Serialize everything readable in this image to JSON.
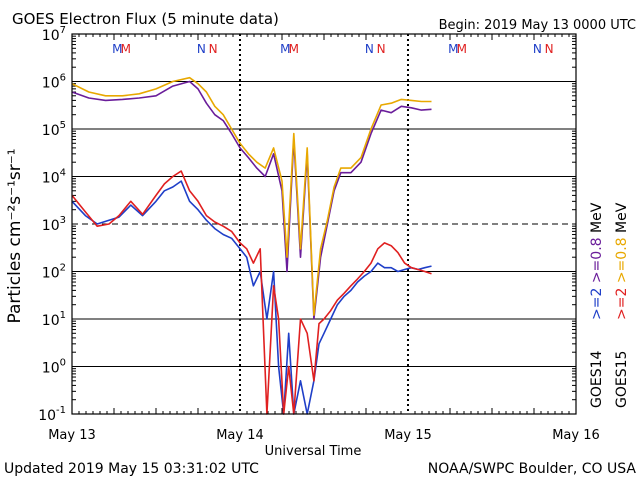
{
  "chart_data": {
    "type": "line",
    "title": "GOES Electron Flux (5 minute data)",
    "begin_label": "Begin: 2019 May 13 0000 UTC",
    "xlabel": "Universal Time",
    "ylabel": "Particles cm⁻²s⁻¹sr⁻¹",
    "x_unit": "days since 2019 May 13 0000 UTC",
    "xlim": [
      0,
      3
    ],
    "x_ticks": [
      {
        "x": 0,
        "label": "May 13"
      },
      {
        "x": 1,
        "label": "May 14"
      },
      {
        "x": 2,
        "label": "May 15"
      },
      {
        "x": 3,
        "label": "May 16"
      }
    ],
    "y_scale": "log",
    "ylim": [
      0.1,
      10000000
    ],
    "y_ticks": [
      {
        "base": "10",
        "exp": "7"
      },
      {
        "base": "10",
        "exp": "6"
      },
      {
        "base": "10",
        "exp": "5"
      },
      {
        "base": "10",
        "exp": "4"
      },
      {
        "base": "10",
        "exp": "3"
      },
      {
        "base": "10",
        "exp": "2"
      },
      {
        "base": "10",
        "exp": "1"
      },
      {
        "base": "10",
        "exp": "0"
      },
      {
        "base": "10",
        "exp": "-1"
      }
    ],
    "dashed_threshold": 1000,
    "markers": [
      {
        "x": 0.27,
        "text": "M",
        "color": "#1f3fc8"
      },
      {
        "x": 0.32,
        "text": "M",
        "color": "#e02020"
      },
      {
        "x": 0.77,
        "text": "N",
        "color": "#1f3fc8"
      },
      {
        "x": 0.84,
        "text": "N",
        "color": "#e02020"
      },
      {
        "x": 1.27,
        "text": "M",
        "color": "#1f3fc8"
      },
      {
        "x": 1.32,
        "text": "M",
        "color": "#e02020"
      },
      {
        "x": 1.77,
        "text": "N",
        "color": "#1f3fc8"
      },
      {
        "x": 1.84,
        "text": "N",
        "color": "#e02020"
      },
      {
        "x": 2.27,
        "text": "M",
        "color": "#1f3fc8"
      },
      {
        "x": 2.32,
        "text": "M",
        "color": "#e02020"
      },
      {
        "x": 2.77,
        "text": "N",
        "color": "#1f3fc8"
      },
      {
        "x": 2.84,
        "text": "N",
        "color": "#e02020"
      }
    ],
    "legend": [
      {
        "sat": "GOES14",
        "parts": [
          {
            "text": ">=2",
            "color": "#1f3fc8"
          },
          {
            "text": ">=0.8",
            "color": "#6a1d9a"
          }
        ],
        "unit": "MeV"
      },
      {
        "sat": "GOES15",
        "parts": [
          {
            "text": ">=2",
            "color": "#e02020"
          },
          {
            "text": ">=0.8",
            "color": "#e8a800"
          }
        ],
        "unit": "MeV"
      }
    ],
    "series": [
      {
        "name": "GOES14 >=0.8 MeV",
        "color": "#6a1d9a",
        "x": [
          0.0,
          0.1,
          0.2,
          0.3,
          0.4,
          0.5,
          0.6,
          0.7,
          0.75,
          0.8,
          0.85,
          0.9,
          0.95,
          1.0,
          1.05,
          1.1,
          1.15,
          1.2,
          1.25,
          1.28,
          1.32,
          1.36,
          1.4,
          1.44,
          1.48,
          1.52,
          1.56,
          1.6,
          1.66,
          1.72,
          1.78,
          1.84,
          1.9,
          1.96,
          2.02,
          2.08,
          2.14
        ],
        "y": [
          600000,
          450000,
          400000,
          420000,
          450000,
          500000,
          800000,
          1000000,
          700000,
          350000,
          200000,
          150000,
          80000,
          40000,
          25000,
          15000,
          10000,
          30000,
          5000,
          100,
          60000,
          200,
          30000,
          10,
          200,
          1000,
          5000,
          12000,
          12000,
          20000,
          80000,
          250000,
          220000,
          300000,
          280000,
          250000,
          260000
        ]
      },
      {
        "name": "GOES15 >=0.8 MeV",
        "color": "#e8a800",
        "x": [
          0.0,
          0.1,
          0.2,
          0.3,
          0.4,
          0.5,
          0.6,
          0.7,
          0.75,
          0.8,
          0.85,
          0.9,
          0.95,
          1.0,
          1.05,
          1.1,
          1.15,
          1.2,
          1.25,
          1.28,
          1.32,
          1.36,
          1.4,
          1.44,
          1.48,
          1.52,
          1.56,
          1.6,
          1.66,
          1.72,
          1.78,
          1.84,
          1.9,
          1.96,
          2.02,
          2.08,
          2.14
        ],
        "y": [
          900000,
          600000,
          500000,
          500000,
          550000,
          700000,
          1000000,
          1200000,
          900000,
          600000,
          300000,
          200000,
          100000,
          50000,
          30000,
          20000,
          15000,
          40000,
          8000,
          200,
          80000,
          300,
          40000,
          12,
          300,
          1200,
          6000,
          15000,
          15000,
          25000,
          100000,
          320000,
          350000,
          420000,
          400000,
          380000,
          380000
        ]
      },
      {
        "name": "GOES14 >=2 MeV",
        "color": "#1f3fc8",
        "x": [
          0.0,
          0.08,
          0.15,
          0.22,
          0.28,
          0.35,
          0.42,
          0.5,
          0.55,
          0.6,
          0.65,
          0.7,
          0.75,
          0.8,
          0.85,
          0.9,
          0.95,
          1.0,
          1.04,
          1.08,
          1.12,
          1.16,
          1.2,
          1.23,
          1.26,
          1.29,
          1.32,
          1.36,
          1.4,
          1.44,
          1.47,
          1.5,
          1.54,
          1.58,
          1.62,
          1.66,
          1.7,
          1.74,
          1.78,
          1.82,
          1.86,
          1.9,
          1.94,
          1.98,
          2.02,
          2.06,
          2.1,
          2.14
        ],
        "y": [
          3000,
          1500,
          1000,
          1200,
          1400,
          2500,
          1500,
          3000,
          5000,
          6000,
          8000,
          3000,
          2000,
          1200,
          800,
          600,
          500,
          300,
          200,
          50,
          100,
          10,
          100,
          1,
          0.1,
          5,
          0.1,
          0.5,
          0.1,
          0.5,
          3,
          5,
          10,
          20,
          30,
          40,
          60,
          80,
          100,
          150,
          120,
          120,
          100,
          110,
          120,
          110,
          120,
          130
        ]
      },
      {
        "name": "GOES15 >=2 MeV",
        "color": "#e02020",
        "x": [
          0.0,
          0.08,
          0.15,
          0.22,
          0.28,
          0.35,
          0.42,
          0.5,
          0.55,
          0.6,
          0.65,
          0.7,
          0.75,
          0.8,
          0.85,
          0.9,
          0.95,
          1.0,
          1.04,
          1.08,
          1.12,
          1.16,
          1.2,
          1.23,
          1.26,
          1.29,
          1.32,
          1.36,
          1.4,
          1.44,
          1.47,
          1.5,
          1.54,
          1.58,
          1.62,
          1.66,
          1.7,
          1.74,
          1.78,
          1.82,
          1.86,
          1.9,
          1.94,
          1.98,
          2.02,
          2.06,
          2.1,
          2.14
        ],
        "y": [
          4000,
          1800,
          900,
          1000,
          1500,
          3000,
          1600,
          4000,
          7000,
          10000,
          13000,
          5000,
          3000,
          1500,
          1100,
          900,
          700,
          400,
          300,
          150,
          300,
          0.1,
          50,
          10,
          0.1,
          1,
          0.1,
          10,
          5,
          0.5,
          8,
          10,
          15,
          25,
          35,
          50,
          70,
          100,
          150,
          300,
          400,
          350,
          250,
          150,
          120,
          110,
          100,
          90
        ]
      }
    ]
  },
  "footer": {
    "updated": "Updated 2019 May 15 03:31:02 UTC",
    "source": "NOAA/SWPC Boulder, CO USA"
  }
}
